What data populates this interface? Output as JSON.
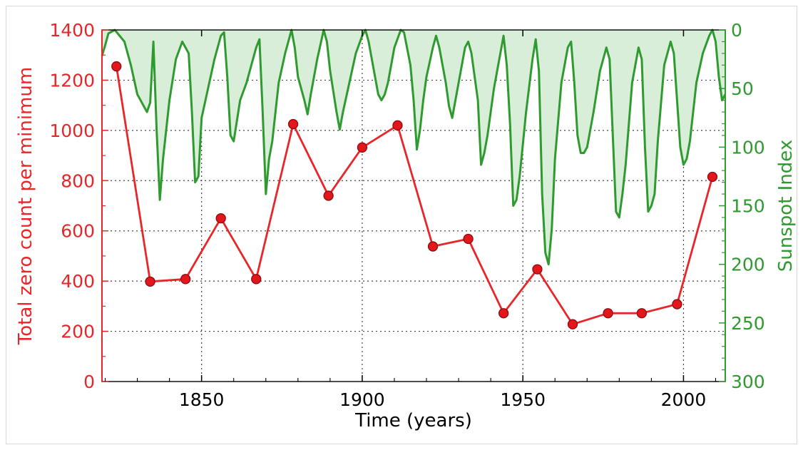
{
  "chart_data": {
    "type": "line",
    "title": "",
    "xlabel": "Time (years)",
    "xlim": [
      1819,
      2013
    ],
    "x_ticks": [
      1850,
      1900,
      1950,
      2000
    ],
    "grid": true,
    "left_axis": {
      "label": "Total zero count per minimum",
      "color": "#e8262a",
      "ylim": [
        0,
        1400
      ],
      "ticks": [
        0,
        200,
        400,
        600,
        800,
        1000,
        1200,
        1400
      ]
    },
    "right_axis": {
      "label": "Sunspot Index",
      "color": "#2f9a2f",
      "ylim": [
        0,
        300
      ],
      "inverted": true,
      "ticks": [
        0,
        50,
        100,
        150,
        200,
        250,
        300
      ]
    },
    "series": [
      {
        "axis": "left",
        "color": "#e8262a",
        "marker": "circle",
        "points": [
          {
            "x": 1823.5,
            "y": 1255
          },
          {
            "x": 1834.0,
            "y": 398
          },
          {
            "x": 1845.0,
            "y": 408
          },
          {
            "x": 1856.0,
            "y": 650
          },
          {
            "x": 1867.0,
            "y": 408
          },
          {
            "x": 1878.5,
            "y": 1025
          },
          {
            "x": 1889.5,
            "y": 740
          },
          {
            "x": 1900.0,
            "y": 932
          },
          {
            "x": 1911.0,
            "y": 1020
          },
          {
            "x": 1922.0,
            "y": 538
          },
          {
            "x": 1933.0,
            "y": 568
          },
          {
            "x": 1944.0,
            "y": 272
          },
          {
            "x": 1954.5,
            "y": 447
          },
          {
            "x": 1965.5,
            "y": 228
          },
          {
            "x": 1976.5,
            "y": 272
          },
          {
            "x": 1987.0,
            "y": 272
          },
          {
            "x": 1998.0,
            "y": 308
          },
          {
            "x": 2009.0,
            "y": 815
          }
        ]
      },
      {
        "axis": "right",
        "color": "#2f9a2f",
        "fill": "#d8eed8",
        "points": [
          {
            "x": 1819,
            "y": 22
          },
          {
            "x": 1820,
            "y": 13
          },
          {
            "x": 1821,
            "y": 3
          },
          {
            "x": 1823,
            "y": 0
          },
          {
            "x": 1826,
            "y": 10
          },
          {
            "x": 1828,
            "y": 30
          },
          {
            "x": 1830,
            "y": 55
          },
          {
            "x": 1832,
            "y": 65
          },
          {
            "x": 1833,
            "y": 70
          },
          {
            "x": 1834,
            "y": 62
          },
          {
            "x": 1835,
            "y": 10
          },
          {
            "x": 1836,
            "y": 85
          },
          {
            "x": 1837,
            "y": 145
          },
          {
            "x": 1838,
            "y": 110
          },
          {
            "x": 1839,
            "y": 85
          },
          {
            "x": 1840,
            "y": 60
          },
          {
            "x": 1842,
            "y": 25
          },
          {
            "x": 1844,
            "y": 10
          },
          {
            "x": 1846,
            "y": 20
          },
          {
            "x": 1847,
            "y": 70
          },
          {
            "x": 1848,
            "y": 130
          },
          {
            "x": 1849,
            "y": 125
          },
          {
            "x": 1850,
            "y": 75
          },
          {
            "x": 1852,
            "y": 50
          },
          {
            "x": 1854,
            "y": 25
          },
          {
            "x": 1856,
            "y": 5
          },
          {
            "x": 1857,
            "y": 2
          },
          {
            "x": 1858,
            "y": 40
          },
          {
            "x": 1859,
            "y": 90
          },
          {
            "x": 1860,
            "y": 95
          },
          {
            "x": 1862,
            "y": 60
          },
          {
            "x": 1864,
            "y": 45
          },
          {
            "x": 1866,
            "y": 25
          },
          {
            "x": 1867,
            "y": 15
          },
          {
            "x": 1868,
            "y": 8
          },
          {
            "x": 1869,
            "y": 70
          },
          {
            "x": 1870,
            "y": 140
          },
          {
            "x": 1871,
            "y": 110
          },
          {
            "x": 1872,
            "y": 95
          },
          {
            "x": 1874,
            "y": 45
          },
          {
            "x": 1876,
            "y": 20
          },
          {
            "x": 1878,
            "y": 0
          },
          {
            "x": 1879,
            "y": 15
          },
          {
            "x": 1880,
            "y": 40
          },
          {
            "x": 1882,
            "y": 60
          },
          {
            "x": 1883,
            "y": 72
          },
          {
            "x": 1884,
            "y": 55
          },
          {
            "x": 1886,
            "y": 25
          },
          {
            "x": 1888,
            "y": 0
          },
          {
            "x": 1889,
            "y": 10
          },
          {
            "x": 1890,
            "y": 35
          },
          {
            "x": 1892,
            "y": 70
          },
          {
            "x": 1893,
            "y": 85
          },
          {
            "x": 1894,
            "y": 70
          },
          {
            "x": 1896,
            "y": 45
          },
          {
            "x": 1898,
            "y": 20
          },
          {
            "x": 1900,
            "y": 5
          },
          {
            "x": 1901,
            "y": 0
          },
          {
            "x": 1902,
            "y": 10
          },
          {
            "x": 1904,
            "y": 40
          },
          {
            "x": 1905,
            "y": 55
          },
          {
            "x": 1906,
            "y": 60
          },
          {
            "x": 1907,
            "y": 55
          },
          {
            "x": 1908,
            "y": 45
          },
          {
            "x": 1910,
            "y": 15
          },
          {
            "x": 1912,
            "y": 0
          },
          {
            "x": 1913,
            "y": 2
          },
          {
            "x": 1915,
            "y": 30
          },
          {
            "x": 1916,
            "y": 60
          },
          {
            "x": 1917,
            "y": 102
          },
          {
            "x": 1918,
            "y": 85
          },
          {
            "x": 1919,
            "y": 60
          },
          {
            "x": 1920,
            "y": 40
          },
          {
            "x": 1922,
            "y": 15
          },
          {
            "x": 1923,
            "y": 5
          },
          {
            "x": 1924,
            "y": 15
          },
          {
            "x": 1926,
            "y": 45
          },
          {
            "x": 1927,
            "y": 65
          },
          {
            "x": 1928,
            "y": 75
          },
          {
            "x": 1929,
            "y": 60
          },
          {
            "x": 1930,
            "y": 45
          },
          {
            "x": 1932,
            "y": 15
          },
          {
            "x": 1933,
            "y": 10
          },
          {
            "x": 1934,
            "y": 20
          },
          {
            "x": 1936,
            "y": 60
          },
          {
            "x": 1937,
            "y": 115
          },
          {
            "x": 1938,
            "y": 105
          },
          {
            "x": 1939,
            "y": 90
          },
          {
            "x": 1941,
            "y": 50
          },
          {
            "x": 1943,
            "y": 20
          },
          {
            "x": 1944,
            "y": 5
          },
          {
            "x": 1945,
            "y": 30
          },
          {
            "x": 1946,
            "y": 80
          },
          {
            "x": 1947,
            "y": 150
          },
          {
            "x": 1948,
            "y": 145
          },
          {
            "x": 1949,
            "y": 125
          },
          {
            "x": 1951,
            "y": 70
          },
          {
            "x": 1953,
            "y": 25
          },
          {
            "x": 1954,
            "y": 8
          },
          {
            "x": 1955,
            "y": 35
          },
          {
            "x": 1956,
            "y": 140
          },
          {
            "x": 1957,
            "y": 190
          },
          {
            "x": 1958,
            "y": 200
          },
          {
            "x": 1959,
            "y": 170
          },
          {
            "x": 1960,
            "y": 110
          },
          {
            "x": 1962,
            "y": 45
          },
          {
            "x": 1963,
            "y": 30
          },
          {
            "x": 1964,
            "y": 15
          },
          {
            "x": 1965,
            "y": 10
          },
          {
            "x": 1966,
            "y": 45
          },
          {
            "x": 1967,
            "y": 90
          },
          {
            "x": 1968,
            "y": 105
          },
          {
            "x": 1969,
            "y": 105
          },
          {
            "x": 1970,
            "y": 100
          },
          {
            "x": 1972,
            "y": 70
          },
          {
            "x": 1974,
            "y": 35
          },
          {
            "x": 1976,
            "y": 15
          },
          {
            "x": 1977,
            "y": 25
          },
          {
            "x": 1978,
            "y": 90
          },
          {
            "x": 1979,
            "y": 155
          },
          {
            "x": 1980,
            "y": 160
          },
          {
            "x": 1981,
            "y": 140
          },
          {
            "x": 1982,
            "y": 115
          },
          {
            "x": 1984,
            "y": 45
          },
          {
            "x": 1986,
            "y": 15
          },
          {
            "x": 1987,
            "y": 25
          },
          {
            "x": 1988,
            "y": 100
          },
          {
            "x": 1989,
            "y": 155
          },
          {
            "x": 1990,
            "y": 150
          },
          {
            "x": 1991,
            "y": 140
          },
          {
            "x": 1992,
            "y": 95
          },
          {
            "x": 1994,
            "y": 30
          },
          {
            "x": 1996,
            "y": 10
          },
          {
            "x": 1997,
            "y": 20
          },
          {
            "x": 1998,
            "y": 60
          },
          {
            "x": 1999,
            "y": 100
          },
          {
            "x": 2000,
            "y": 115
          },
          {
            "x": 2001,
            "y": 110
          },
          {
            "x": 2002,
            "y": 95
          },
          {
            "x": 2004,
            "y": 45
          },
          {
            "x": 2006,
            "y": 20
          },
          {
            "x": 2008,
            "y": 5
          },
          {
            "x": 2009,
            "y": 0
          },
          {
            "x": 2010,
            "y": 10
          },
          {
            "x": 2011,
            "y": 40
          },
          {
            "x": 2012,
            "y": 60
          },
          {
            "x": 2013,
            "y": 55
          }
        ]
      }
    ]
  }
}
